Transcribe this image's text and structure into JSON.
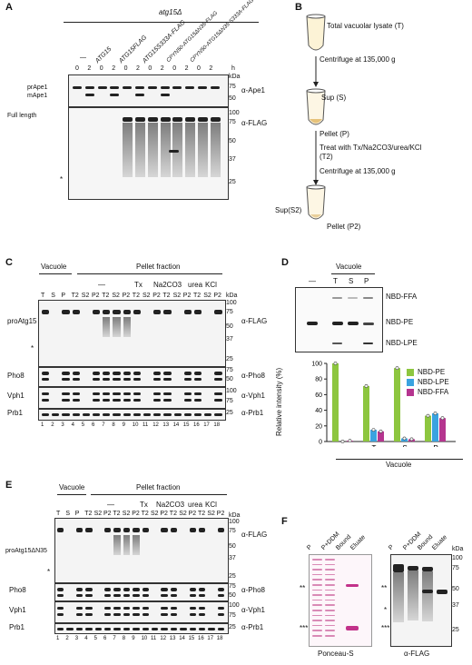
{
  "panels": {
    "a": "A",
    "b": "B",
    "c": "C",
    "d": "D",
    "e": "E",
    "f": "F"
  },
  "A": {
    "strain": "atg15Δ",
    "hours_unit": "h",
    "kda": "kDa",
    "columns": [
      "—",
      "ATG15",
      "ATG15FLAG",
      "ATG15S333A-FLAG",
      "CPYN50-ATG15ΔN35-FLAG",
      "CPYN50-ATG15ΔN35 S333A-FLAG"
    ],
    "hours": [
      "0",
      "2",
      "0",
      "2",
      "0",
      "2",
      "0",
      "2",
      "0",
      "2",
      "0",
      "2"
    ],
    "top_labels": [
      "prApe1",
      "mApe1"
    ],
    "top_antibody": "α-Ape1",
    "top_markers": [
      "75",
      "50"
    ],
    "bottom_label": "Full length",
    "bottom_antibody": "α-FLAG",
    "bottom_markers": [
      "100",
      "75",
      "50",
      "37",
      "25"
    ],
    "star": "*"
  },
  "B": {
    "steps": [
      "Total vacuolar lysate (T)",
      "Centrifuge at 135,000 g",
      "Sup (S)",
      "Pellet (P)",
      "Treat with Tx/Na2CO3/urea/KCl (T2)",
      "Centrifuge at 135,000 g",
      "Sup(S2)",
      "Pellet (P2)"
    ]
  },
  "C": {
    "vacuole": "Vacuole",
    "pellet": "Pellet fraction",
    "treatments": [
      "—",
      "Tx",
      "Na2CO3",
      "urea",
      "KCl"
    ],
    "lanes": [
      "T",
      "S",
      "P",
      "T2",
      "S2",
      "P2",
      "T2",
      "S2",
      "P2",
      "T2",
      "S2",
      "P2",
      "T2",
      "S2",
      "P2",
      "T2",
      "S2",
      "P2"
    ],
    "lane_numbers": [
      "1",
      "2",
      "3",
      "4",
      "5",
      "6",
      "7",
      "8",
      "9",
      "10",
      "11",
      "12",
      "13",
      "14",
      "15",
      "16",
      "17",
      "18"
    ],
    "protein": "proAtg15",
    "antibodies": [
      "α-FLAG",
      "α-Pho8",
      "α-Vph1",
      "α-Prb1"
    ],
    "rows": [
      "Pho8",
      "Vph1",
      "Prb1"
    ],
    "kda": "kDa",
    "markers_flag": [
      "100",
      "75",
      "50",
      "37",
      "25"
    ],
    "markers_pho8": [
      "75",
      "50"
    ],
    "markers_vph1": [
      "100",
      "75"
    ],
    "markers_prb1": [
      "25"
    ],
    "star": "*"
  },
  "D": {
    "vacuole": "Vacuole",
    "tlc_lanes": [
      "—",
      "T",
      "S",
      "P"
    ],
    "spot_labels": [
      "NBD-FFA",
      "NBD-PE",
      "NBD-LPE"
    ],
    "ylabel": "Relative intensity (%)",
    "xlabel": "Vacuole",
    "legend": [
      "NBD-PE",
      "NBD-LPE",
      "NBD-FFA"
    ]
  },
  "E": {
    "vacuole": "Vacuole",
    "pellet": "Pellet fraction",
    "treatments": [
      "—",
      "Tx",
      "Na2CO3",
      "urea",
      "KCl"
    ],
    "lanes": [
      "T",
      "S",
      "P",
      "T2",
      "S2",
      "P2",
      "T2",
      "S2",
      "P2",
      "T2",
      "S2",
      "P2",
      "T2",
      "S2",
      "P2",
      "T2",
      "S2",
      "P2"
    ],
    "lane_numbers": [
      "1",
      "2",
      "3",
      "4",
      "5",
      "6",
      "7",
      "8",
      "9",
      "10",
      "11",
      "12",
      "13",
      "14",
      "15",
      "16",
      "17",
      "18"
    ],
    "protein": "proAtg15ΔN35",
    "antibodies": [
      "α-FLAG",
      "α-Pho8",
      "α-Vph1",
      "α-Prb1"
    ],
    "rows": [
      "Pho8",
      "Vph1",
      "Prb1"
    ],
    "kda": "kDa",
    "markers_flag": [
      "100",
      "75",
      "50",
      "37",
      "25"
    ],
    "markers_pho8": [
      "75",
      "50"
    ],
    "markers_vph1": [
      "100",
      "75"
    ],
    "markers_prb1": [
      "25"
    ],
    "star": "*"
  },
  "F": {
    "lanes": [
      "P",
      "P+DDM",
      "Bound",
      "Eluate"
    ],
    "left_caption": "Ponceau-S",
    "right_caption": "α-FLAG",
    "kda": "kDa",
    "markers": [
      "100",
      "75",
      "50",
      "37",
      "25"
    ],
    "double_star": "**",
    "star": "*",
    "triple_star": "***"
  },
  "chart_data": {
    "type": "bar",
    "categories": [
      "—",
      "T",
      "S",
      "P"
    ],
    "series": [
      {
        "name": "NBD-PE",
        "color": "#8dc63f",
        "values": [
          100,
          71,
          94,
          33
        ]
      },
      {
        "name": "NBD-LPE",
        "color": "#3aa3e0",
        "values": [
          0,
          15,
          4,
          36
        ]
      },
      {
        "name": "NBD-FFA",
        "color": "#b5358f",
        "values": [
          1,
          13,
          3,
          30
        ]
      }
    ],
    "ylabel": "Relative intensity (%)",
    "xlabel": "Vacuole",
    "ylim": [
      0,
      100
    ],
    "yticks": [
      "0",
      "20",
      "40",
      "60",
      "80",
      "100"
    ]
  }
}
